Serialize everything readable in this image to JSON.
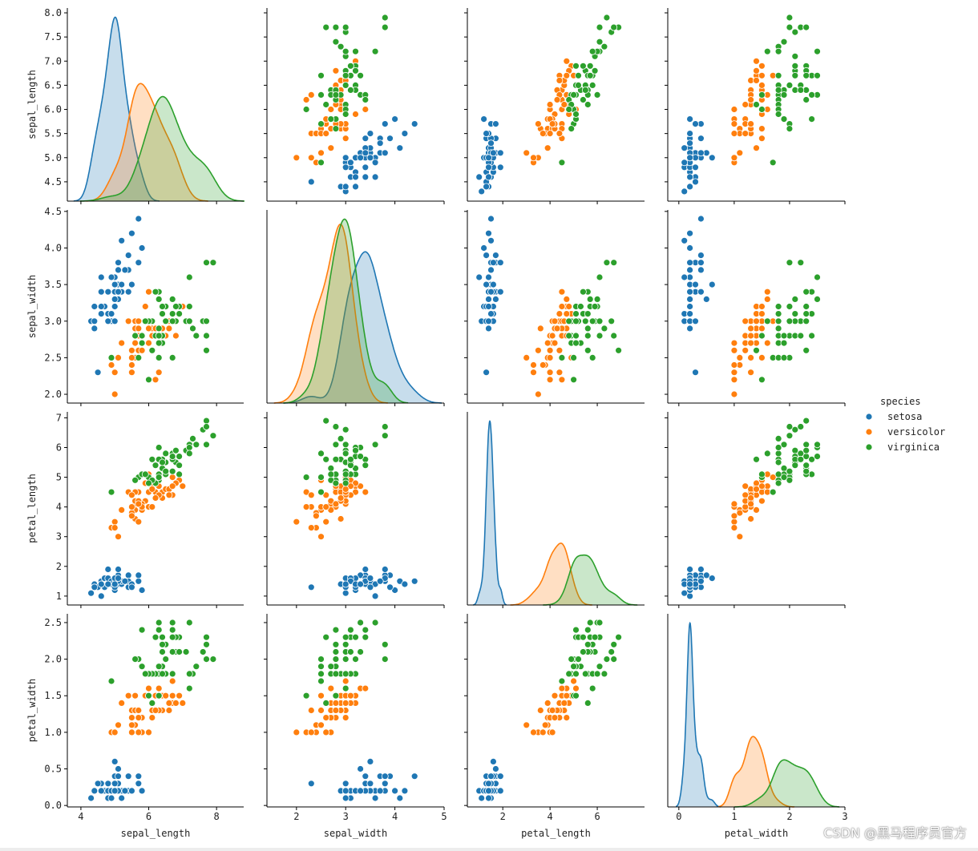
{
  "chart_data": {
    "type": "scatter",
    "kind": "pairplot",
    "variables": [
      "sepal_length",
      "sepal_width",
      "petal_length",
      "petal_width"
    ],
    "axes": {
      "sepal_length": {
        "lim": [
          3.6,
          8.8
        ],
        "xticks": [
          {
            "v": 4,
            "label": "4"
          },
          {
            "v": 6,
            "label": "6"
          },
          {
            "v": 8,
            "label": "8"
          }
        ],
        "ylim": [
          4.1,
          8.1
        ],
        "yticks": [
          {
            "v": 4.5,
            "label": "4.5"
          },
          {
            "v": 5.0,
            "label": "5.0"
          },
          {
            "v": 5.5,
            "label": "5.5"
          },
          {
            "v": 6.0,
            "label": "6.0"
          },
          {
            "v": 6.5,
            "label": "6.5"
          },
          {
            "v": 7.0,
            "label": "7.0"
          },
          {
            "v": 7.5,
            "label": "7.5"
          },
          {
            "v": 8.0,
            "label": "8.0"
          }
        ]
      },
      "sepal_width": {
        "lim": [
          1.4,
          5.0
        ],
        "xticks": [
          {
            "v": 2,
            "label": "2"
          },
          {
            "v": 3,
            "label": "3"
          },
          {
            "v": 4,
            "label": "4"
          },
          {
            "v": 5,
            "label": "5"
          }
        ],
        "ylim": [
          1.88,
          4.52
        ],
        "yticks": [
          {
            "v": 2.0,
            "label": "2.0"
          },
          {
            "v": 2.5,
            "label": "2.5"
          },
          {
            "v": 3.0,
            "label": "3.0"
          },
          {
            "v": 3.5,
            "label": "3.5"
          },
          {
            "v": 4.0,
            "label": "4.0"
          },
          {
            "v": 4.5,
            "label": "4.5"
          }
        ]
      },
      "petal_length": {
        "lim": [
          0.5,
          8.0
        ],
        "xticks": [
          {
            "v": 2,
            "label": "2"
          },
          {
            "v": 4,
            "label": "4"
          },
          {
            "v": 6,
            "label": "6"
          }
        ],
        "ylim": [
          0.7,
          7.2
        ],
        "yticks": [
          {
            "v": 1,
            "label": "1"
          },
          {
            "v": 2,
            "label": "2"
          },
          {
            "v": 3,
            "label": "3"
          },
          {
            "v": 4,
            "label": "4"
          },
          {
            "v": 5,
            "label": "5"
          },
          {
            "v": 6,
            "label": "6"
          },
          {
            "v": 7,
            "label": "7"
          }
        ]
      },
      "petal_width": {
        "lim": [
          -0.2,
          3.0
        ],
        "xticks": [
          {
            "v": 0,
            "label": "0"
          },
          {
            "v": 1,
            "label": "1"
          },
          {
            "v": 2,
            "label": "2"
          },
          {
            "v": 3,
            "label": "3"
          }
        ],
        "ylim": [
          -0.02,
          2.62
        ],
        "yticks": [
          {
            "v": 0.0,
            "label": "0.0"
          },
          {
            "v": 0.5,
            "label": "0.5"
          },
          {
            "v": 1.0,
            "label": "1.0"
          },
          {
            "v": 1.5,
            "label": "1.5"
          },
          {
            "v": 2.0,
            "label": "2.0"
          },
          {
            "v": 2.5,
            "label": "2.5"
          }
        ]
      }
    },
    "legend": {
      "title": "species",
      "position": "right",
      "entries": [
        {
          "name": "setosa",
          "color": "#1f77b4"
        },
        {
          "name": "versicolor",
          "color": "#ff7f0e"
        },
        {
          "name": "virginica",
          "color": "#2ca02c"
        }
      ]
    },
    "grid": false,
    "diagonal": "kde",
    "series": [
      {
        "name": "setosa",
        "color": "#1f77b4",
        "points": [
          [
            5.1,
            3.5,
            1.4,
            0.2
          ],
          [
            4.9,
            3.0,
            1.4,
            0.2
          ],
          [
            4.7,
            3.2,
            1.3,
            0.2
          ],
          [
            4.6,
            3.1,
            1.5,
            0.2
          ],
          [
            5.0,
            3.6,
            1.4,
            0.2
          ],
          [
            5.4,
            3.9,
            1.7,
            0.4
          ],
          [
            4.6,
            3.4,
            1.4,
            0.3
          ],
          [
            5.0,
            3.4,
            1.5,
            0.2
          ],
          [
            4.4,
            2.9,
            1.4,
            0.2
          ],
          [
            4.9,
            3.1,
            1.5,
            0.1
          ],
          [
            5.4,
            3.7,
            1.5,
            0.2
          ],
          [
            4.8,
            3.4,
            1.6,
            0.2
          ],
          [
            4.8,
            3.0,
            1.4,
            0.1
          ],
          [
            4.3,
            3.0,
            1.1,
            0.1
          ],
          [
            5.8,
            4.0,
            1.2,
            0.2
          ],
          [
            5.7,
            4.4,
            1.5,
            0.4
          ],
          [
            5.4,
            3.9,
            1.3,
            0.4
          ],
          [
            5.1,
            3.5,
            1.4,
            0.3
          ],
          [
            5.7,
            3.8,
            1.7,
            0.3
          ],
          [
            5.1,
            3.8,
            1.5,
            0.3
          ],
          [
            5.4,
            3.4,
            1.7,
            0.2
          ],
          [
            5.1,
            3.7,
            1.5,
            0.4
          ],
          [
            4.6,
            3.6,
            1.0,
            0.2
          ],
          [
            5.1,
            3.3,
            1.7,
            0.5
          ],
          [
            4.8,
            3.4,
            1.9,
            0.2
          ],
          [
            5.0,
            3.0,
            1.6,
            0.2
          ],
          [
            5.0,
            3.4,
            1.6,
            0.4
          ],
          [
            5.2,
            3.5,
            1.5,
            0.2
          ],
          [
            5.2,
            3.4,
            1.4,
            0.2
          ],
          [
            4.7,
            3.2,
            1.6,
            0.2
          ],
          [
            4.8,
            3.1,
            1.6,
            0.2
          ],
          [
            5.4,
            3.4,
            1.5,
            0.4
          ],
          [
            5.2,
            4.1,
            1.5,
            0.1
          ],
          [
            5.5,
            4.2,
            1.4,
            0.2
          ],
          [
            4.9,
            3.1,
            1.5,
            0.2
          ],
          [
            5.0,
            3.2,
            1.2,
            0.2
          ],
          [
            5.5,
            3.5,
            1.3,
            0.2
          ],
          [
            4.9,
            3.6,
            1.4,
            0.1
          ],
          [
            4.4,
            3.0,
            1.3,
            0.2
          ],
          [
            5.1,
            3.4,
            1.5,
            0.2
          ],
          [
            5.0,
            3.5,
            1.3,
            0.3
          ],
          [
            4.5,
            2.3,
            1.3,
            0.3
          ],
          [
            4.4,
            3.2,
            1.3,
            0.2
          ],
          [
            5.0,
            3.5,
            1.6,
            0.6
          ],
          [
            5.1,
            3.8,
            1.9,
            0.4
          ],
          [
            4.8,
            3.0,
            1.4,
            0.3
          ],
          [
            5.1,
            3.8,
            1.6,
            0.2
          ],
          [
            4.6,
            3.2,
            1.4,
            0.2
          ],
          [
            5.3,
            3.7,
            1.5,
            0.2
          ],
          [
            5.0,
            3.3,
            1.4,
            0.2
          ]
        ]
      },
      {
        "name": "versicolor",
        "color": "#ff7f0e",
        "points": [
          [
            7.0,
            3.2,
            4.7,
            1.4
          ],
          [
            6.4,
            3.2,
            4.5,
            1.5
          ],
          [
            6.9,
            3.1,
            4.9,
            1.5
          ],
          [
            5.5,
            2.3,
            4.0,
            1.3
          ],
          [
            6.5,
            2.8,
            4.6,
            1.5
          ],
          [
            5.7,
            2.8,
            4.5,
            1.3
          ],
          [
            6.3,
            3.3,
            4.7,
            1.6
          ],
          [
            4.9,
            2.4,
            3.3,
            1.0
          ],
          [
            6.6,
            2.9,
            4.6,
            1.3
          ],
          [
            5.2,
            2.7,
            3.9,
            1.4
          ],
          [
            5.0,
            2.0,
            3.5,
            1.0
          ],
          [
            5.9,
            3.0,
            4.2,
            1.5
          ],
          [
            6.0,
            2.2,
            4.0,
            1.0
          ],
          [
            6.1,
            2.9,
            4.7,
            1.4
          ],
          [
            5.6,
            2.9,
            3.6,
            1.3
          ],
          [
            6.7,
            3.1,
            4.4,
            1.4
          ],
          [
            5.6,
            3.0,
            4.5,
            1.5
          ],
          [
            5.8,
            2.7,
            4.1,
            1.0
          ],
          [
            6.2,
            2.2,
            4.5,
            1.5
          ],
          [
            5.6,
            2.5,
            3.9,
            1.1
          ],
          [
            5.9,
            3.2,
            4.8,
            1.8
          ],
          [
            6.1,
            2.8,
            4.0,
            1.3
          ],
          [
            6.3,
            2.5,
            4.9,
            1.5
          ],
          [
            6.1,
            2.8,
            4.7,
            1.2
          ],
          [
            6.4,
            2.9,
            4.3,
            1.3
          ],
          [
            6.6,
            3.0,
            4.4,
            1.4
          ],
          [
            6.8,
            2.8,
            4.8,
            1.4
          ],
          [
            6.7,
            3.0,
            5.0,
            1.7
          ],
          [
            6.0,
            2.9,
            4.5,
            1.5
          ],
          [
            5.7,
            2.6,
            3.5,
            1.0
          ],
          [
            5.5,
            2.4,
            3.8,
            1.1
          ],
          [
            5.5,
            2.4,
            3.7,
            1.0
          ],
          [
            5.8,
            2.7,
            3.9,
            1.2
          ],
          [
            6.0,
            2.7,
            5.1,
            1.6
          ],
          [
            5.4,
            3.0,
            4.5,
            1.5
          ],
          [
            6.0,
            3.4,
            4.5,
            1.6
          ],
          [
            6.7,
            3.1,
            4.7,
            1.5
          ],
          [
            6.3,
            2.3,
            4.4,
            1.3
          ],
          [
            5.6,
            3.0,
            4.1,
            1.3
          ],
          [
            5.5,
            2.5,
            4.0,
            1.3
          ],
          [
            5.5,
            2.6,
            4.4,
            1.2
          ],
          [
            6.1,
            3.0,
            4.6,
            1.4
          ],
          [
            5.8,
            2.6,
            4.0,
            1.2
          ],
          [
            5.0,
            2.3,
            3.3,
            1.0
          ],
          [
            5.6,
            2.7,
            4.2,
            1.3
          ],
          [
            5.7,
            3.0,
            4.2,
            1.2
          ],
          [
            5.7,
            2.9,
            4.2,
            1.3
          ],
          [
            6.2,
            2.9,
            4.3,
            1.3
          ],
          [
            5.1,
            2.5,
            3.0,
            1.1
          ],
          [
            5.7,
            2.8,
            4.1,
            1.3
          ]
        ]
      },
      {
        "name": "virginica",
        "color": "#2ca02c",
        "points": [
          [
            6.3,
            3.3,
            6.0,
            2.5
          ],
          [
            5.8,
            2.7,
            5.1,
            1.9
          ],
          [
            7.1,
            3.0,
            5.9,
            2.1
          ],
          [
            6.3,
            2.9,
            5.6,
            1.8
          ],
          [
            6.5,
            3.0,
            5.8,
            2.2
          ],
          [
            7.6,
            3.0,
            6.6,
            2.1
          ],
          [
            4.9,
            2.5,
            4.5,
            1.7
          ],
          [
            7.3,
            2.9,
            6.3,
            1.8
          ],
          [
            6.7,
            2.5,
            5.8,
            1.8
          ],
          [
            7.2,
            3.6,
            6.1,
            2.5
          ],
          [
            6.5,
            3.2,
            5.1,
            2.0
          ],
          [
            6.4,
            2.7,
            5.3,
            1.9
          ],
          [
            6.8,
            3.0,
            5.5,
            2.1
          ],
          [
            5.7,
            2.5,
            5.0,
            2.0
          ],
          [
            5.8,
            2.8,
            5.1,
            2.4
          ],
          [
            6.4,
            3.2,
            5.3,
            2.3
          ],
          [
            6.5,
            3.0,
            5.5,
            1.8
          ],
          [
            7.7,
            3.8,
            6.7,
            2.2
          ],
          [
            7.7,
            2.6,
            6.9,
            2.3
          ],
          [
            6.0,
            2.2,
            5.0,
            1.5
          ],
          [
            6.9,
            3.2,
            5.7,
            2.3
          ],
          [
            5.6,
            2.8,
            4.9,
            2.0
          ],
          [
            7.7,
            2.8,
            6.7,
            2.0
          ],
          [
            6.3,
            2.7,
            4.9,
            1.8
          ],
          [
            6.7,
            3.3,
            5.7,
            2.1
          ],
          [
            7.2,
            3.2,
            6.0,
            1.8
          ],
          [
            6.2,
            2.8,
            4.8,
            1.8
          ],
          [
            6.1,
            3.0,
            4.9,
            1.8
          ],
          [
            6.4,
            2.8,
            5.6,
            2.1
          ],
          [
            7.2,
            3.0,
            5.8,
            1.6
          ],
          [
            7.4,
            2.8,
            6.1,
            1.9
          ],
          [
            7.9,
            3.8,
            6.4,
            2.0
          ],
          [
            6.4,
            2.8,
            5.6,
            2.2
          ],
          [
            6.3,
            2.8,
            5.1,
            1.5
          ],
          [
            6.1,
            2.6,
            5.6,
            1.4
          ],
          [
            7.7,
            3.0,
            6.1,
            2.3
          ],
          [
            6.3,
            3.4,
            5.6,
            2.4
          ],
          [
            6.4,
            3.1,
            5.5,
            1.8
          ],
          [
            6.0,
            3.0,
            4.8,
            1.8
          ],
          [
            6.9,
            3.1,
            5.4,
            2.1
          ],
          [
            6.7,
            3.1,
            5.6,
            2.4
          ],
          [
            6.9,
            3.1,
            5.1,
            2.3
          ],
          [
            5.8,
            2.7,
            5.1,
            1.9
          ],
          [
            6.8,
            3.2,
            5.9,
            2.3
          ],
          [
            6.7,
            3.3,
            5.7,
            2.5
          ],
          [
            6.7,
            3.0,
            5.2,
            2.3
          ],
          [
            6.3,
            2.5,
            5.0,
            1.9
          ],
          [
            6.5,
            3.0,
            5.2,
            2.0
          ],
          [
            6.2,
            3.4,
            5.4,
            2.3
          ],
          [
            5.9,
            3.0,
            5.1,
            1.8
          ]
        ]
      }
    ]
  },
  "watermark": "CSDN @黑马程序员官方"
}
